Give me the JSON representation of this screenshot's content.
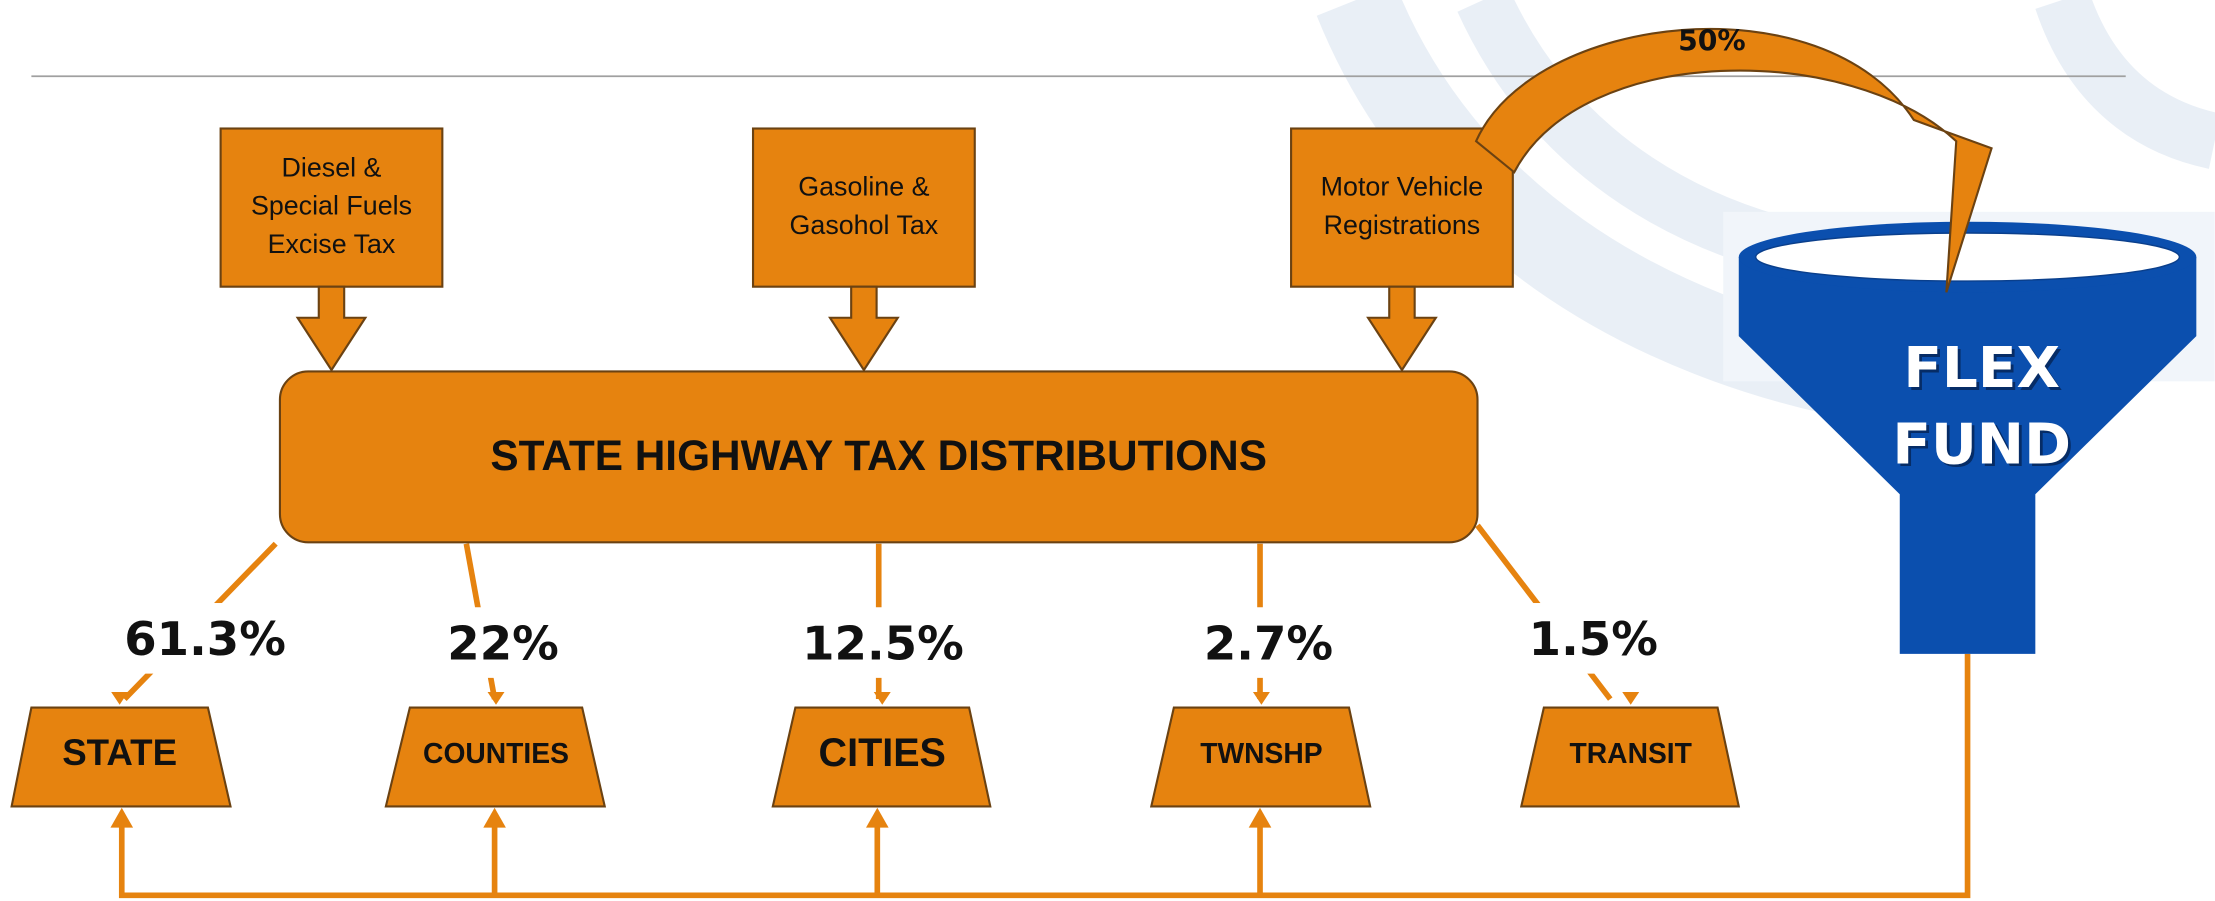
{
  "sources": [
    {
      "lines": [
        "Diesel &",
        "Special Fuels",
        "Excise Tax"
      ]
    },
    {
      "lines": [
        "Gasoline &",
        "Gasohol Tax"
      ]
    },
    {
      "lines": [
        "Motor Vehicle",
        "Registrations"
      ]
    }
  ],
  "center": {
    "label": "STATE HIGHWAY TAX DISTRIBUTIONS"
  },
  "distributions": [
    {
      "share": "61.3%",
      "label": "STATE"
    },
    {
      "share": "22%",
      "label": "COUNTIES"
    },
    {
      "share": "12.5%",
      "label": "CITIES"
    },
    {
      "share": "2.7%",
      "label": "TWNSHP"
    },
    {
      "share": "1.5%",
      "label": "TRANSIT"
    }
  ],
  "flex_fund": {
    "lines": [
      "FLEX",
      "FUND"
    ],
    "share": "50%"
  }
}
